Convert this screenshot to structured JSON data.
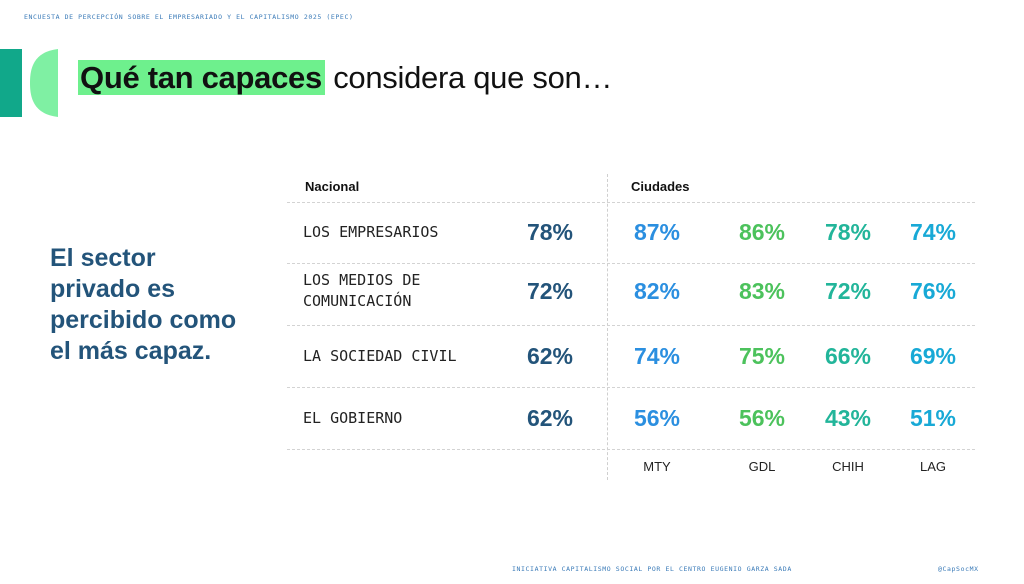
{
  "header_label": "ENCUESTA DE PERCEPCIÓN SOBRE EL EMPRESARIADO Y EL CAPITALISMO 2025 (EPEC)",
  "title": {
    "highlight": "Qué tan capaces",
    "rest": " considera que son…"
  },
  "side_text": "El sector privado es percibido como el más capaz.",
  "footer": {
    "center": "INICIATIVA CAPITALISMO SOCIAL POR EL CENTRO EUGENIO GARZA SADA",
    "handle": "@CapSocMX"
  },
  "colors": {
    "nacional": "#23547a",
    "MTY": "#2b8fe0",
    "GDL": "#4cc25c",
    "CHIH": "#22b59a",
    "LAG": "#18a9d6",
    "highlight": "#6ef08d",
    "logo_dark": "#11a88a"
  },
  "chart_data": {
    "type": "table",
    "group_headers": {
      "nacional": "Nacional",
      "ciudades": "Ciudades"
    },
    "categories": [
      "LOS EMPRESARIOS",
      "LOS MEDIOS DE COMUNICACIÓN",
      "LA SOCIEDAD CIVIL",
      "EL GOBIERNO"
    ],
    "row_label_lines": [
      [
        "LOS EMPRESARIOS"
      ],
      [
        "LOS MEDIOS DE",
        "COMUNICACIÓN"
      ],
      [
        "LA SOCIEDAD CIVIL"
      ],
      [
        "EL GOBIERNO"
      ]
    ],
    "unit": "%",
    "series": [
      {
        "name": "Nacional",
        "values": [
          78,
          72,
          62,
          62
        ]
      },
      {
        "name": "MTY",
        "values": [
          87,
          82,
          74,
          56
        ]
      },
      {
        "name": "GDL",
        "values": [
          86,
          83,
          75,
          56
        ]
      },
      {
        "name": "CHIH",
        "values": [
          78,
          72,
          66,
          43
        ]
      },
      {
        "name": "LAG",
        "values": [
          74,
          76,
          69,
          51
        ]
      }
    ]
  }
}
